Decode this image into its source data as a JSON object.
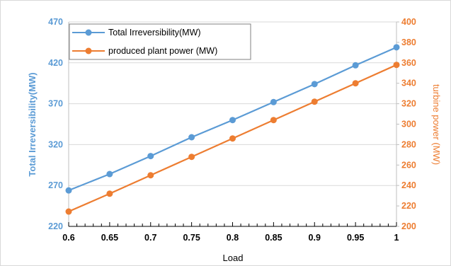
{
  "chart_data": {
    "type": "line",
    "xlabel": "Load",
    "ylabel_left": "Total Irreversibility(MW)",
    "ylabel_right": "turbine  power (MW)",
    "x": [
      0.6,
      0.65,
      0.7,
      0.75,
      0.8,
      0.85,
      0.9,
      0.95,
      1.0
    ],
    "x_tick_labels": [
      "0.6",
      "0.65",
      "0.7",
      "0.75",
      "0.8",
      "0.85",
      "0.9",
      "0.95",
      "1"
    ],
    "y_left_lim": [
      220,
      470
    ],
    "y_left_ticks": [
      220,
      270,
      320,
      370,
      420,
      470
    ],
    "y_right_lim": [
      200,
      400
    ],
    "y_right_ticks": [
      200,
      220,
      240,
      260,
      280,
      300,
      320,
      340,
      360,
      380,
      400
    ],
    "x_lim": [
      0.6,
      1.0
    ],
    "grid": "horizontal",
    "legend_position": "top-left",
    "series": [
      {
        "name": "Total Irreversibility(MW)",
        "axis": "left",
        "color": "#5B9BD5",
        "values": [
          264,
          284,
          306,
          329,
          350,
          372,
          394,
          417,
          439
        ]
      },
      {
        "name": "produced plant power (MW)",
        "axis": "right",
        "color": "#ED7D31",
        "values": [
          214.5,
          232,
          250,
          268,
          286,
          304,
          322,
          340,
          358
        ]
      }
    ]
  }
}
